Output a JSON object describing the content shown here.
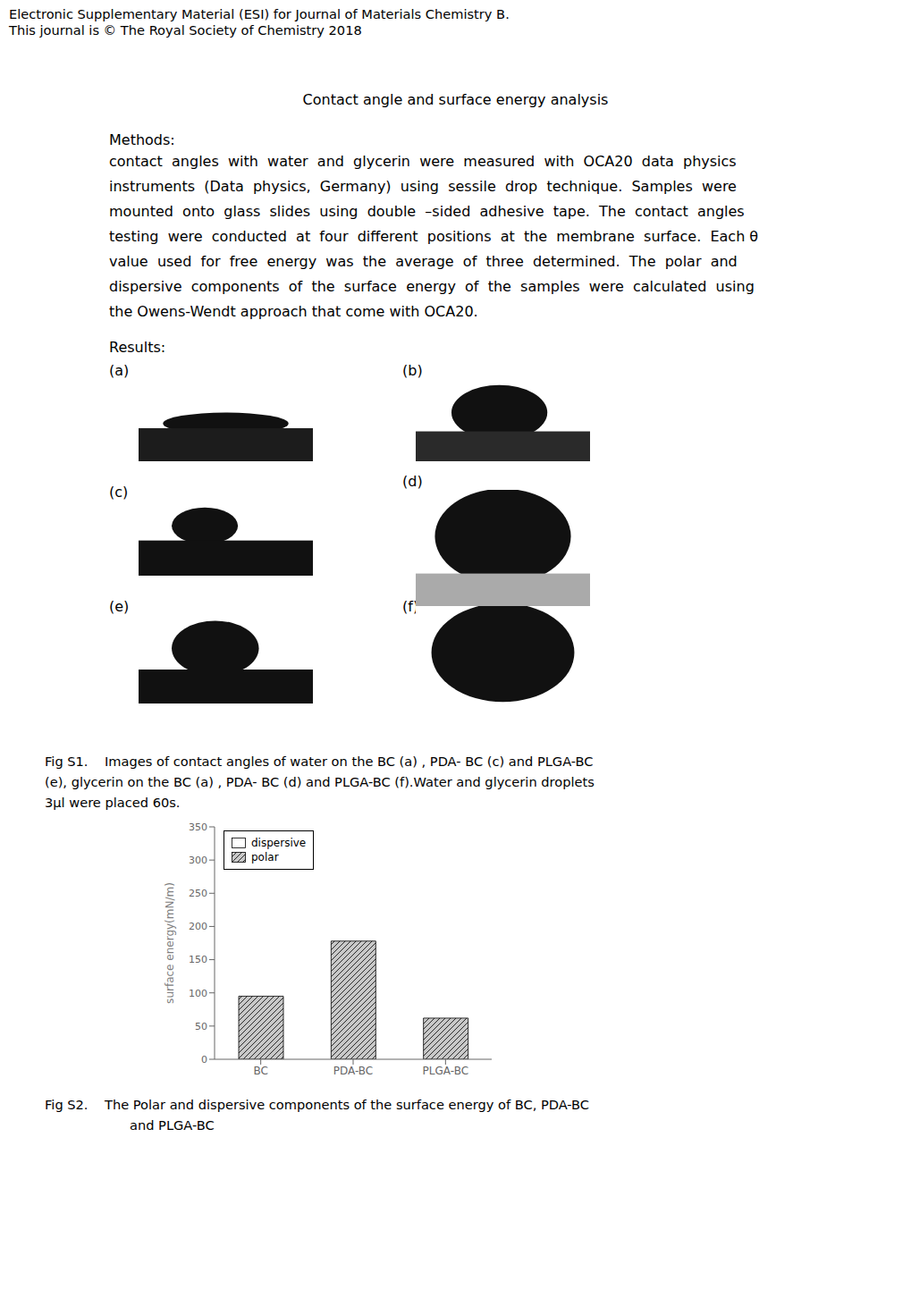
{
  "chart_data": {
    "type": "bar",
    "title": "Contact angle and surface energy analysis",
    "annotations": [
      "Electronic Supplementary Material (ESI) for Journal of Materials Chemistry B.",
      "This journal is © The Royal Society of Chemistry 2018",
      "Methods:",
      "contact  angles  with  water  and  glycerin  were  measured  with  OCA20  data  physics",
      "instruments  (Data  physics,  Germany)  using  sessile  drop  technique.  Samples  were",
      "mounted  onto  glass  slides  using  double  –sided  adhesive  tape.  The  contact  angles",
      "testing  were  conducted  at  four  different  positions  at  the  membrane  surface.  Each θ",
      "value  used  for  free  energy  was  the  average  of  three  determined.  The  polar  and",
      "dispersive  components  of  the  surface  energy  of  the  samples  were  calculated  using",
      "the Owens-Wendt approach that come with OCA20.",
      "Results:",
      "(a)",
      "(b)",
      "(c)",
      "(d)",
      "(e)",
      "(f)",
      "Fig S1.    Images of contact angles of water on the BC (a) , PDA- BC (c) and PLGA-BC",
      "(e), glycerin on the BC (a) , PDA- BC (d) and PLGA-BC (f).Water and glycerin droplets",
      "3μl were placed 60s.",
      "Fig S2.    The Polar and dispersive components of the surface energy of BC, PDA-BC",
      "and PLGA-BC"
    ],
    "categories": [
      "BC",
      "PDA-BC",
      "PLGA-BC"
    ],
    "series": [
      {
        "name": "dispersive",
        "color": "#ffffff",
        "values": [
          null,
          null,
          null
        ]
      },
      {
        "name": "polar",
        "color": "#c8c8c8",
        "values": [
          95,
          178,
          62
        ]
      }
    ],
    "ylabel": "surface energy(mN/m)",
    "ylim": [
      0,
      350
    ],
    "yticks": [
      0,
      50,
      100,
      150,
      200,
      250,
      300,
      350
    ],
    "grid": false,
    "legend": "upper left"
  }
}
